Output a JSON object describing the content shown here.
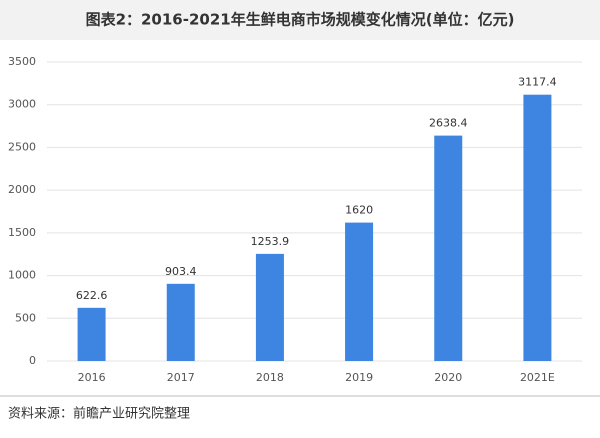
{
  "chart_data": {
    "type": "bar",
    "title": "图表2：2016-2021年生鲜电商市场规模变化情况(单位：亿元)",
    "categories": [
      "2016",
      "2017",
      "2018",
      "2019",
      "2020",
      "2021E"
    ],
    "values": [
      622.6,
      903.4,
      1253.9,
      1620,
      2638.4,
      3117.4
    ],
    "color": "#3d85e0",
    "ylim": [
      0,
      3500
    ],
    "yticks": [
      0,
      500,
      1000,
      1500,
      2000,
      2500,
      3000,
      3500
    ],
    "grid": true,
    "source": "资料来源：前瞻产业研究院整理"
  }
}
